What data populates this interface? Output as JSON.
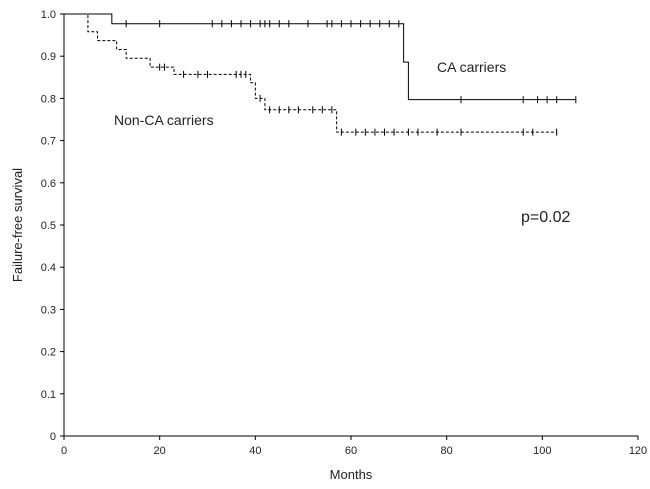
{
  "chart_data": {
    "type": "line",
    "subtype": "kaplan-meier-step",
    "xlabel": "Months",
    "ylabel": "Failure-free survival",
    "xlim": [
      0,
      120
    ],
    "ylim": [
      0,
      1.0
    ],
    "xticks": [
      0,
      20,
      40,
      60,
      80,
      100,
      120
    ],
    "yticks": [
      0,
      0.1,
      0.2,
      0.3,
      0.4,
      0.5,
      0.6,
      0.7,
      0.8,
      0.9,
      1.0
    ],
    "ytick_labels": [
      "0",
      "0.1",
      "0.2",
      "0.3",
      "0.4",
      "0.5",
      "0.6",
      "0.7",
      "0.8",
      "0.9",
      "1.0"
    ],
    "grid": false,
    "annotation": "p=0.02",
    "series": [
      {
        "name": "CA carriers",
        "line_style": "solid",
        "color": "#000000",
        "steps": [
          [
            0,
            1.0
          ],
          [
            10,
            0.977
          ],
          [
            71,
            0.886
          ],
          [
            72,
            0.797
          ],
          [
            107,
            0.797
          ]
        ],
        "censored": [
          [
            13,
            0.977
          ],
          [
            20,
            0.977
          ],
          [
            31,
            0.977
          ],
          [
            33,
            0.977
          ],
          [
            35,
            0.977
          ],
          [
            37,
            0.977
          ],
          [
            39,
            0.977
          ],
          [
            41,
            0.977
          ],
          [
            42,
            0.977
          ],
          [
            43,
            0.977
          ],
          [
            45,
            0.977
          ],
          [
            47,
            0.977
          ],
          [
            51,
            0.977
          ],
          [
            55,
            0.977
          ],
          [
            56,
            0.977
          ],
          [
            58,
            0.977
          ],
          [
            60,
            0.977
          ],
          [
            62,
            0.977
          ],
          [
            64,
            0.977
          ],
          [
            66,
            0.977
          ],
          [
            68,
            0.977
          ],
          [
            70,
            0.977
          ],
          [
            83,
            0.797
          ],
          [
            96,
            0.797
          ],
          [
            99,
            0.797
          ],
          [
            101,
            0.797
          ],
          [
            103,
            0.797
          ],
          [
            107,
            0.797
          ]
        ]
      },
      {
        "name": "Non-CA carriers",
        "line_style": "dashed",
        "color": "#000000",
        "steps": [
          [
            0,
            1.0
          ],
          [
            5,
            0.958
          ],
          [
            7,
            0.937
          ],
          [
            11,
            0.916
          ],
          [
            13,
            0.895
          ],
          [
            18,
            0.874
          ],
          [
            23,
            0.857
          ],
          [
            39,
            0.837
          ],
          [
            40,
            0.8
          ],
          [
            42,
            0.773
          ],
          [
            57,
            0.72
          ],
          [
            103,
            0.72
          ]
        ],
        "censored": [
          [
            20,
            0.874
          ],
          [
            21,
            0.874
          ],
          [
            25,
            0.857
          ],
          [
            28,
            0.857
          ],
          [
            30,
            0.857
          ],
          [
            36,
            0.857
          ],
          [
            37,
            0.857
          ],
          [
            38,
            0.857
          ],
          [
            41,
            0.8
          ],
          [
            43,
            0.773
          ],
          [
            45,
            0.773
          ],
          [
            47,
            0.773
          ],
          [
            49,
            0.773
          ],
          [
            52,
            0.773
          ],
          [
            54,
            0.773
          ],
          [
            56,
            0.773
          ],
          [
            58,
            0.72
          ],
          [
            61,
            0.72
          ],
          [
            63,
            0.72
          ],
          [
            65,
            0.72
          ],
          [
            67,
            0.72
          ],
          [
            69,
            0.72
          ],
          [
            72,
            0.72
          ],
          [
            74,
            0.72
          ],
          [
            78,
            0.72
          ],
          [
            83,
            0.72
          ],
          [
            96,
            0.72
          ],
          [
            98,
            0.72
          ],
          [
            103,
            0.72
          ]
        ]
      }
    ]
  }
}
